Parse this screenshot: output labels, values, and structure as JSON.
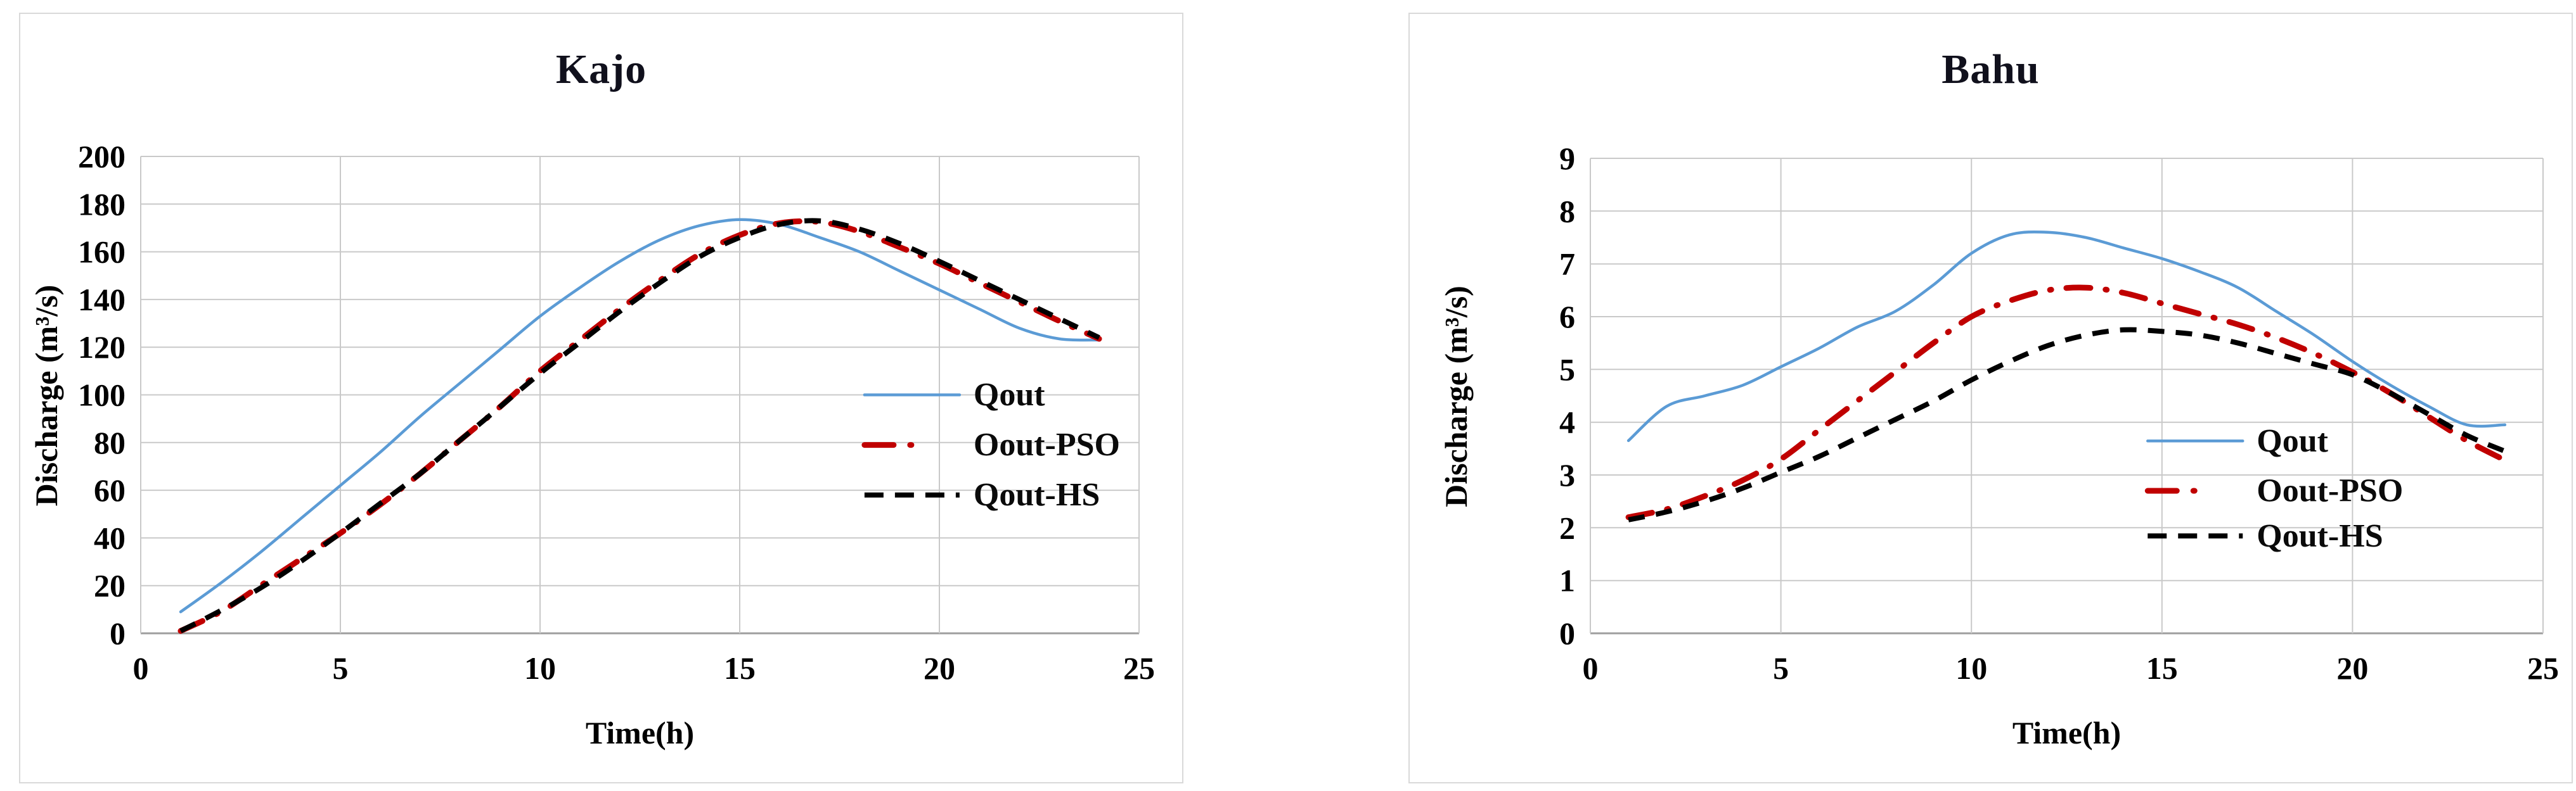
{
  "figure": {
    "background": "#ffffff",
    "panel_border_color": "#d9d9d9",
    "gridline_color": "#c9c9c9",
    "axis_line_color": "#9e9e9e"
  },
  "chart_data": [
    {
      "type": "line",
      "title": "Kajo",
      "xlabel": "Time(h)",
      "ylabel": "Discharge (m³/s)",
      "grid": true,
      "legend_position": "inside-right",
      "xlim": [
        0,
        25
      ],
      "ylim": [
        0,
        200
      ],
      "xticks": [
        0,
        5,
        10,
        15,
        20,
        25
      ],
      "yticks": [
        0,
        20,
        40,
        60,
        80,
        100,
        120,
        140,
        160,
        180,
        200
      ],
      "x": [
        1,
        2,
        3,
        4,
        5,
        6,
        7,
        8,
        9,
        10,
        11,
        12,
        13,
        14,
        15,
        16,
        17,
        18,
        19,
        20,
        21,
        22,
        23,
        24
      ],
      "legend": {
        "x_frac": 0.725,
        "row_fracs": [
          0.5,
          0.605,
          0.71
        ]
      },
      "series": [
        {
          "name": "Qout",
          "color": "#5B9BD5",
          "style": "solid",
          "values": [
            9,
            21,
            34,
            48,
            62,
            76,
            91,
            105,
            119,
            133,
            145,
            156,
            165,
            171,
            173.5,
            171.5,
            166,
            160,
            152,
            144,
            136,
            128,
            123.5,
            123
          ]
        },
        {
          "name": "Oout-PSO",
          "color": "#C00000",
          "style": "dashdot",
          "values": [
            1,
            9,
            20,
            31,
            42,
            54,
            67,
            81,
            95,
            110,
            123,
            136,
            148,
            159,
            167,
            172,
            172.5,
            168.5,
            162,
            155,
            147,
            139,
            131,
            123.5
          ]
        },
        {
          "name": "Qout-HS",
          "color": "#000000",
          "style": "dashed",
          "values": [
            1,
            9.5,
            19,
            30,
            42,
            54.5,
            67,
            81,
            95,
            109,
            122,
            135,
            147,
            158,
            166,
            171.5,
            173,
            169.5,
            163.5,
            156,
            148,
            140,
            132,
            124
          ]
        }
      ]
    },
    {
      "type": "line",
      "title": "Bahu",
      "xlabel": "Time(h)",
      "ylabel": "Discharge (m³/s)",
      "grid": true,
      "legend_position": "inside-right",
      "xlim": [
        0,
        25
      ],
      "ylim": [
        0,
        9
      ],
      "xticks": [
        0,
        5,
        10,
        15,
        20,
        25
      ],
      "yticks": [
        0,
        1,
        2,
        3,
        4,
        5,
        6,
        7,
        8,
        9
      ],
      "x": [
        1,
        2,
        3,
        4,
        5,
        6,
        7,
        8,
        9,
        10,
        11,
        12,
        13,
        14,
        15,
        16,
        17,
        18,
        19,
        20,
        21,
        22,
        23,
        24
      ],
      "legend": {
        "x_frac": 0.585,
        "row_fracs": [
          0.595,
          0.7,
          0.795
        ]
      },
      "series": [
        {
          "name": "Qout",
          "color": "#5B9BD5",
          "style": "solid",
          "values": [
            3.65,
            4.3,
            4.5,
            4.7,
            5.05,
            5.4,
            5.8,
            6.1,
            6.6,
            7.2,
            7.55,
            7.6,
            7.5,
            7.3,
            7.1,
            6.85,
            6.55,
            6.1,
            5.65,
            5.15,
            4.7,
            4.3,
            3.95,
            3.95
          ]
        },
        {
          "name": "Oout-PSO",
          "color": "#C00000",
          "style": "dashdot",
          "values": [
            2.2,
            2.35,
            2.6,
            2.9,
            3.3,
            3.85,
            4.4,
            4.95,
            5.5,
            6.0,
            6.3,
            6.5,
            6.55,
            6.45,
            6.25,
            6.05,
            5.85,
            5.6,
            5.3,
            4.95,
            4.55,
            4.1,
            3.65,
            3.28
          ]
        },
        {
          "name": "Qout-HS",
          "color": "#000000",
          "style": "dashed",
          "values": [
            2.15,
            2.3,
            2.5,
            2.75,
            3.05,
            3.35,
            3.7,
            4.05,
            4.4,
            4.8,
            5.15,
            5.45,
            5.65,
            5.75,
            5.72,
            5.65,
            5.5,
            5.3,
            5.1,
            4.9,
            4.55,
            4.15,
            3.75,
            3.45
          ]
        }
      ]
    }
  ]
}
